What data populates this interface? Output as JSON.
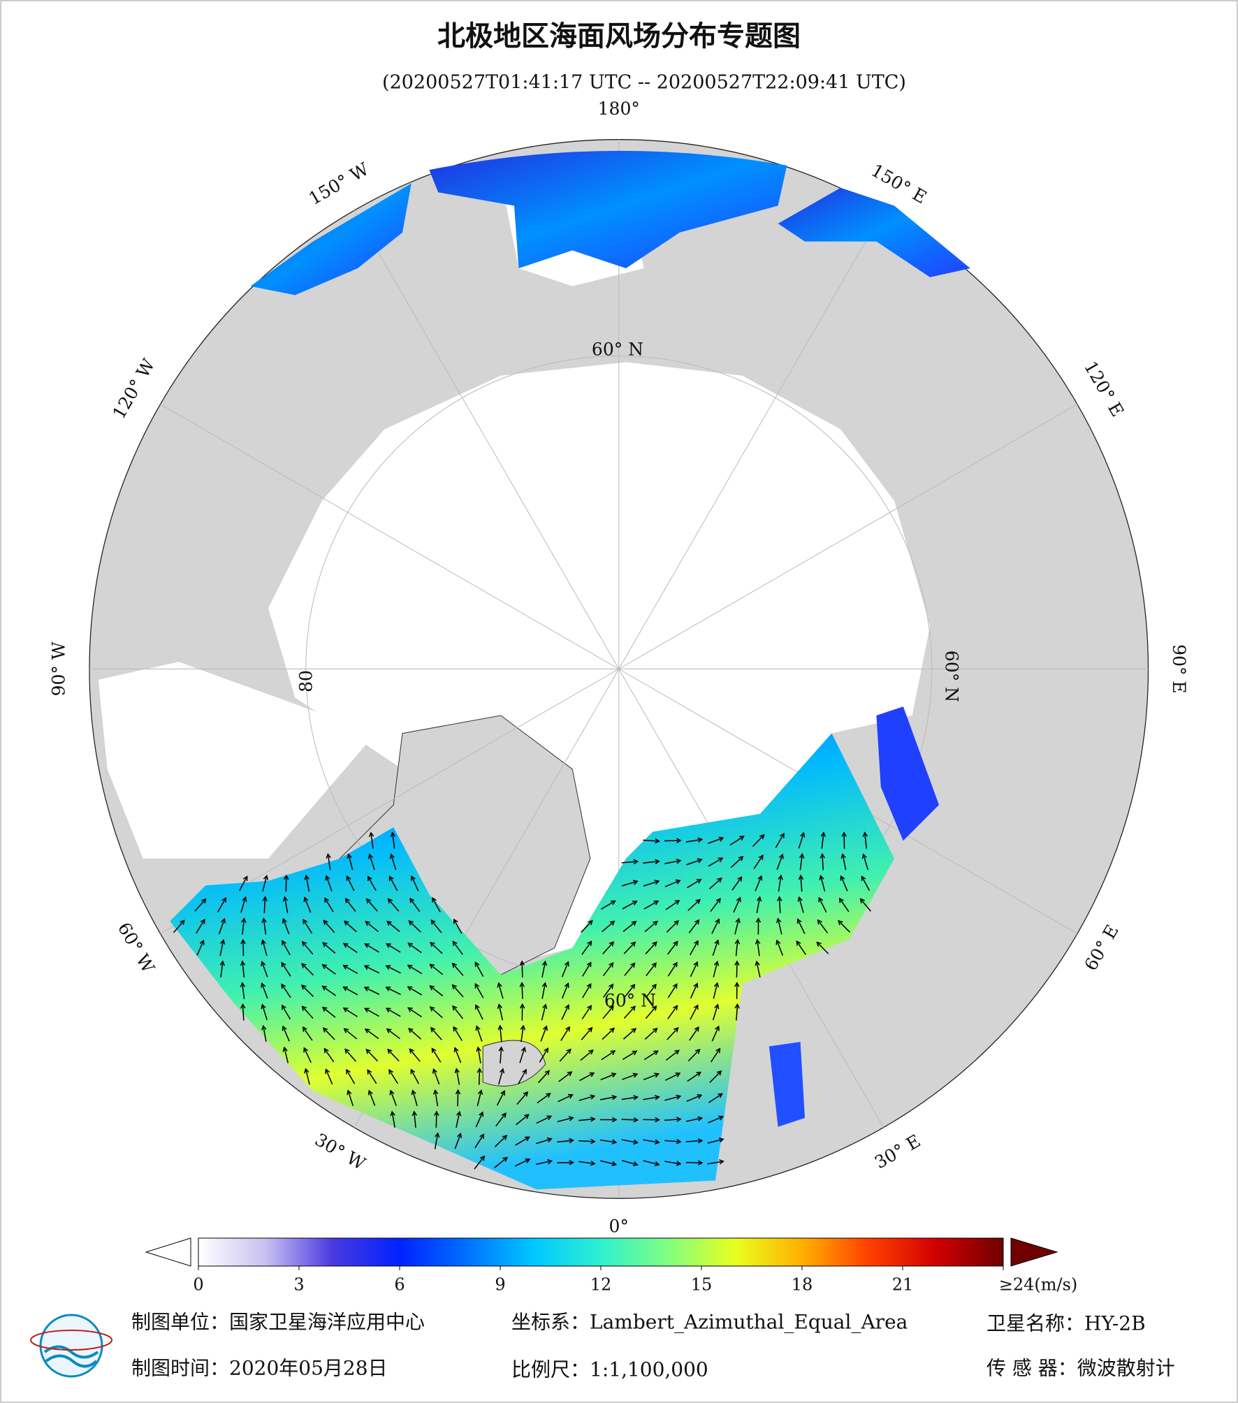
{
  "header": {
    "title": "北极地区海面风场分布专题图",
    "subtitle": "(20200527T01:41:17 UTC -- 20200527T22:09:41 UTC)"
  },
  "map": {
    "graticule_labels": [
      "180°",
      "150° E",
      "120° E",
      "90° E",
      "60° E",
      "30° E",
      "0°",
      "30° W",
      "60° W",
      "90° W",
      "120° W",
      "150° W",
      "60° N",
      "60° N",
      "60° N",
      "80"
    ]
  },
  "colorbar": {
    "range": [
      0,
      24
    ],
    "ticks": [
      0,
      3,
      6,
      9,
      12,
      15,
      18,
      21,
      {
        "value": 24,
        "label": "≥24(m/s)"
      }
    ],
    "colors": [
      "#ffffff",
      "#c8c0f0",
      "#4a3ae0",
      "#0022ff",
      "#0070ff",
      "#00c8ff",
      "#30f0d0",
      "#80ff80",
      "#e8ff20",
      "#ffb000",
      "#ff4000",
      "#d00000",
      "#700000"
    ]
  },
  "footer": {
    "unit": "制图单位：国家卫星海洋应用中心",
    "projection": "坐标系：Lambert_Azimuthal_Equal_Area",
    "satellite": "卫星名称：HY-2B",
    "date": "制图时间：2020年05月28日",
    "scale": "比例尺：1:1,100,000",
    "sensor": "传 感 器：微波散射计"
  }
}
